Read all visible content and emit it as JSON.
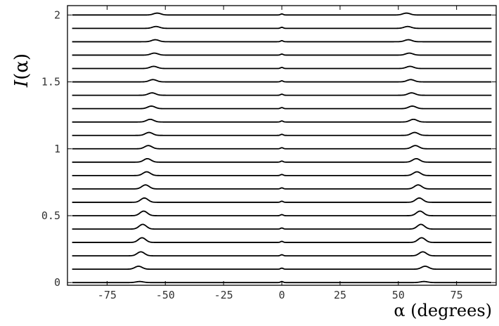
{
  "chart_data": {
    "type": "line",
    "title": "",
    "xlabel": "α (degrees)",
    "ylabel": "I(α)",
    "ylabel_parts": {
      "main": "I",
      "arg": "(α)"
    },
    "xlim": [
      -92,
      92
    ],
    "ylim": [
      -0.02,
      2.07
    ],
    "xticks": [
      -75,
      -50,
      -25,
      0,
      25,
      50,
      75
    ],
    "xtick_labels": [
      "-75",
      "-50",
      "-25",
      "0",
      "25",
      "50",
      "75"
    ],
    "yticks": [
      0,
      0.5,
      1,
      1.5,
      2
    ],
    "ytick_labels": [
      "0",
      "0.5",
      "1",
      "1.5",
      "2"
    ],
    "grid": false,
    "legend": "none",
    "line_color": "#000000",
    "stacked_profiles": {
      "count": 21,
      "baseline_start": 0,
      "baseline_step": 0.1,
      "x_range": [
        -90,
        90
      ],
      "peak_positions_deg": [
        -61,
        -61.5,
        -60.5,
        -60,
        -59.7,
        -59.3,
        -59,
        -58.5,
        -58,
        -57.7,
        -57.3,
        -57,
        -56.5,
        -56,
        -55.7,
        -55.3,
        -55,
        -54.7,
        -54.3,
        -54,
        -53.5
      ],
      "peak_heights": [
        0.008,
        0.022,
        0.03,
        0.035,
        0.035,
        0.034,
        0.032,
        0.03,
        0.028,
        0.026,
        0.024,
        0.022,
        0.02,
        0.019,
        0.018,
        0.017,
        0.016,
        0.015,
        0.015,
        0.014,
        0.014
      ],
      "peak_width_deg": 2.2,
      "center_peak_position_deg": 0,
      "center_peak_height": 0.008,
      "center_peak_width_deg": 0.8
    }
  }
}
